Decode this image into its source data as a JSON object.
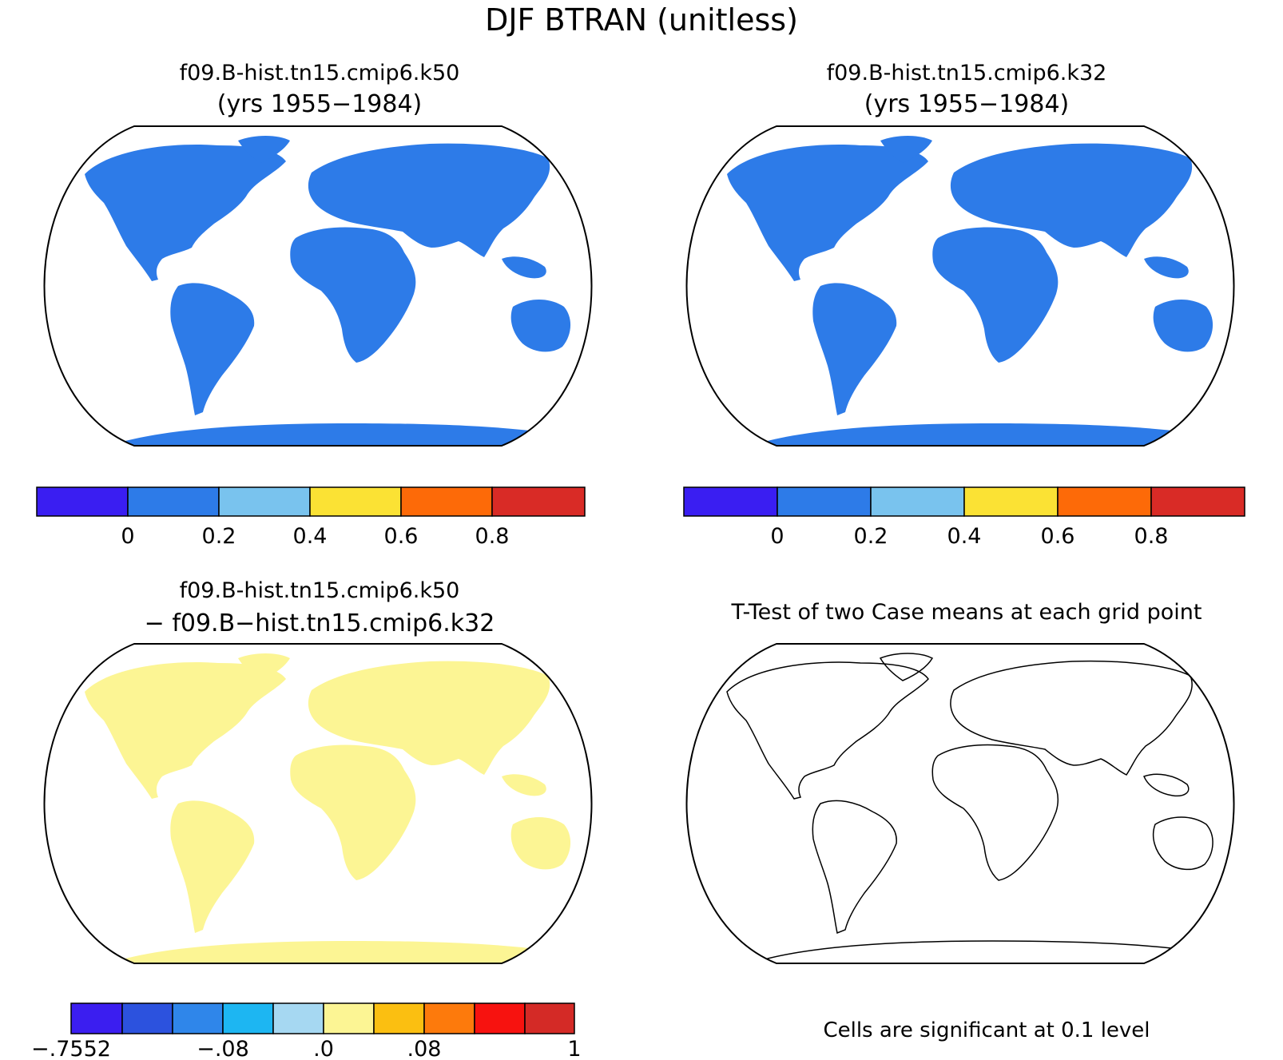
{
  "title": "DJF BTRAN (unitless)",
  "panels": {
    "top_left": {
      "title": "f09.B-hist.tn15.cmip6.k50",
      "subtitle": "(yrs 1955−1984)"
    },
    "top_right": {
      "title": "f09.B-hist.tn15.cmip6.k32",
      "subtitle": "(yrs 1955−1984)"
    },
    "bottom_left": {
      "title": "f09.B-hist.tn15.cmip6.k50",
      "subtitle": "− f09.B−hist.tn15.cmip6.k32"
    },
    "bottom_right": {
      "title": "T-Test of two Case means at each grid point",
      "note": "Cells are significant at 0.1 level"
    }
  },
  "colorbars": {
    "main": {
      "colors": [
        "#3a1ef2",
        "#2d7be8",
        "#79c3ee",
        "#fbe234",
        "#fd6a08",
        "#d92b26"
      ],
      "labels": [
        "0",
        "0.2",
        "0.4",
        "0.6",
        "0.8"
      ]
    },
    "diff": {
      "colors": [
        "#3b1ef0",
        "#2c52de",
        "#2f86ea",
        "#1db6f2",
        "#a6d8f2",
        "#fcf594",
        "#fbbf11",
        "#fd7a0c",
        "#f7120f",
        "#d42a26"
      ],
      "labels": [
        "−.7552",
        "−.08",
        ".0",
        ".08",
        "1"
      ]
    }
  },
  "colors": {
    "land_dry": "#2d7be8",
    "land_wet": "#d92b26",
    "diff_base": "#fcf594",
    "significant": "#f50f0f"
  }
}
